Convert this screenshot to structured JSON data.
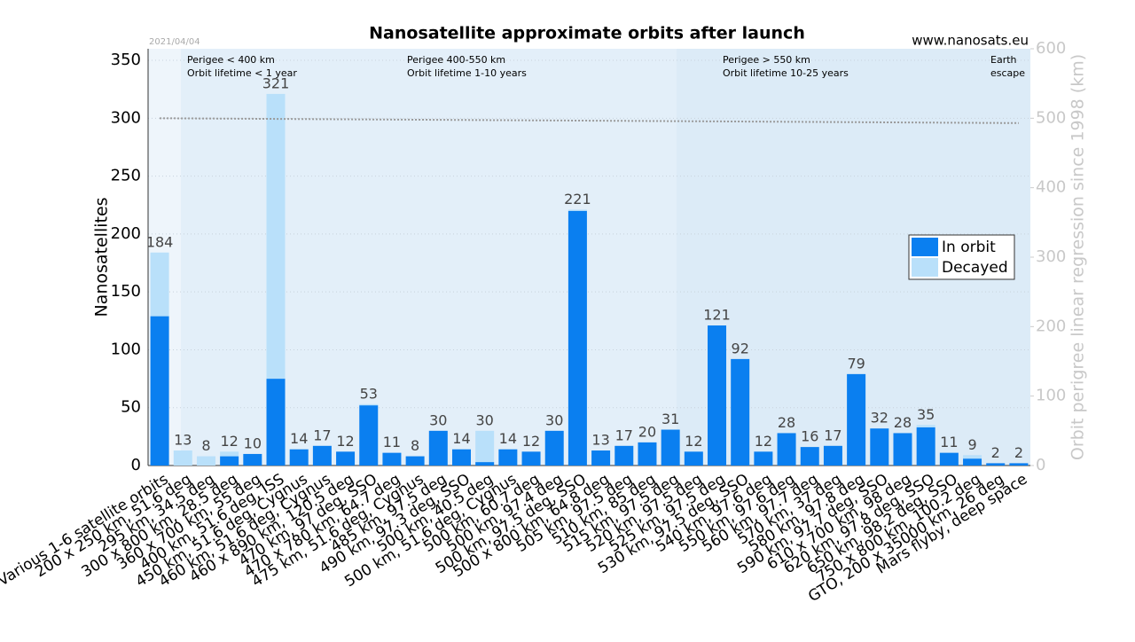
{
  "chart_data": {
    "type": "stacked-bar",
    "title": "Nanosatellite approximate orbits after launch",
    "date": "2021/04/04",
    "source": "www.nanosats.eu",
    "y_label": "Nanosatellites",
    "y2_label": "Orbit perigree linear regression since 1998 (km)",
    "categories": [
      "Various 1-6 satellite orbits",
      "200 x 250 km, 51.6 deg",
      "295 km, 34.5 deg",
      "300 x 800 km, 28.5 deg",
      "360 x 700 km, 55 deg",
      "400 km, 51.6 deg, ISS",
      "450 km, 51.6 deg, Cygnus",
      "460 km, 51.6 deg, Cygnus",
      "460 x 890 km, 120.5 deg",
      "470 km, 97 deg, SSO",
      "470 x 780 km, 64.7 deg",
      "475 km, 51.6 deg, Cygnus",
      "485 km, 97.5 deg",
      "490 km, 97.3 deg, SSO",
      "500 km, 40.5 deg",
      "500 km, 51.6 deg, Cygnus",
      "500 km, 60.7 deg",
      "500 km, 97.4 deg",
      "500 km, 97.5 deg, SSO",
      "500 x 800 km, 64.8 deg",
      "505 km, 97.5 deg",
      "510 km, 85 deg",
      "515 km, 97.5 deg",
      "520 km, 97.5 deg",
      "525 km, 97.5 deg",
      "530 km, 97.5 deg, SSO",
      "540 km, 97.6 deg",
      "550 km, 97.6 deg",
      "560 km, 97.7 deg",
      "570 km, 37 deg",
      "580 km, 97.8 deg",
      "590 km, 97.7 deg, SSO",
      "610 x 700 km, 98 deg",
      "620 km, 97.8 deg, SSO",
      "650 km, 98.2 deg, SSO",
      "750 x 800 km, 100.2 deg",
      "GTO, 200 x 35000 km, 26 deg",
      "Mars flyby, deep space"
    ],
    "series": [
      {
        "name": "In orbit",
        "color": "#0a7ff0",
        "values": [
          129,
          0,
          0,
          8,
          10,
          75,
          14,
          17,
          12,
          52,
          11,
          8,
          30,
          14,
          3,
          14,
          12,
          30,
          220,
          13,
          17,
          20,
          31,
          12,
          121,
          92,
          12,
          28,
          16,
          17,
          79,
          32,
          28,
          33,
          11,
          6,
          2,
          2
        ]
      },
      {
        "name": "Decayed",
        "color": "#b9e0fa",
        "values": [
          55,
          13,
          8,
          4,
          0,
          246,
          0,
          0,
          0,
          1,
          0,
          0,
          0,
          0,
          27,
          0,
          0,
          0,
          1,
          0,
          0,
          0,
          0,
          0,
          0,
          0,
          0,
          0,
          0,
          0,
          0,
          0,
          0,
          2,
          0,
          3,
          0,
          0
        ]
      }
    ],
    "totals": [
      184,
      13,
      8,
      12,
      10,
      321,
      14,
      17,
      12,
      53,
      11,
      8,
      30,
      14,
      30,
      14,
      12,
      30,
      221,
      13,
      17,
      20,
      31,
      12,
      121,
      92,
      12,
      28,
      16,
      17,
      79,
      32,
      28,
      35,
      11,
      9,
      2,
      2
    ],
    "ylim": [
      0,
      360
    ],
    "yticks": [
      0,
      50,
      100,
      150,
      200,
      250,
      300,
      350
    ],
    "y2lim": [
      0,
      600
    ],
    "y2ticks": [
      0,
      100,
      200,
      300,
      400,
      500,
      600
    ],
    "regression": {
      "axis": "y2",
      "values": [
        500,
        493
      ],
      "color": "#999999"
    },
    "annotations": [
      [
        "Perigee < 400 km",
        "Orbit lifetime < 1 year"
      ],
      [
        "Perigee 400-550 km",
        "Orbit lifetime 1-10 years"
      ],
      [
        "Perigee > 550 km",
        "Orbit lifetime 10-25 years"
      ],
      [
        "Earth",
        "escape"
      ]
    ],
    "legend": "right"
  }
}
